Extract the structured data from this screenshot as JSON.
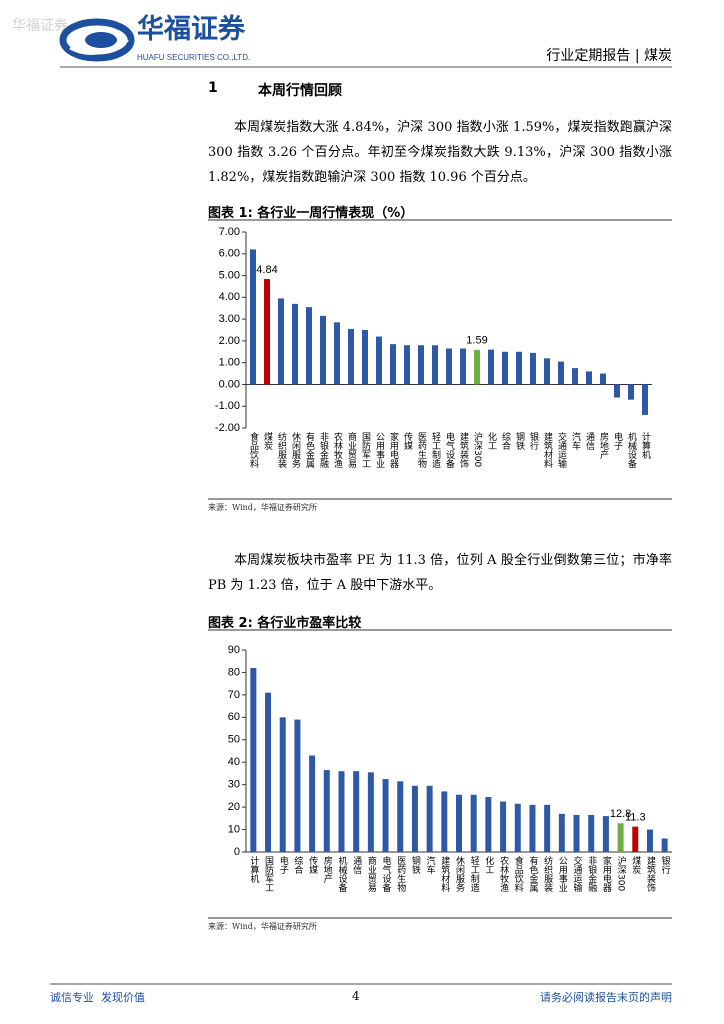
{
  "header": {
    "watermark": "华福证券",
    "logo_name": "华福证券",
    "logo_en": "HUAFU SECURITIES CO.,LTD.",
    "report_type": "行业定期报告 | 煤炭"
  },
  "section": {
    "number": "1",
    "title": "本周行情回顾"
  },
  "paragraphs": [
    "本周煤炭指数大涨 4.84%，沪深 300 指数小涨 1.59%，煤炭指数跑赢沪深 300 指数 3.26 个百分点。年初至今煤炭指数大跌 9.13%，沪深 300 指数小涨 1.82%，煤炭指数跑输沪深 300 指数 10.96 个百分点。",
    "本周煤炭板块市盈率 PE 为 11.3 倍，位列 A 股全行业倒数第三位；市净率 PB 为 1.23 倍，位于 A 股中下游水平。"
  ],
  "figures": [
    {
      "title": "图表 1: 各行业一周行情表现（%）",
      "source": "来源：Wind，华福证券研究所"
    },
    {
      "title": "图表 2: 各行业市盈率比较",
      "source": "来源：Wind，华福证券研究所"
    }
  ],
  "chart_data": [
    {
      "type": "bar",
      "categories": [
        "食品饮料",
        "煤炭",
        "纺织服装",
        "休闲服务",
        "有色金属",
        "非银金融",
        "农林牧渔",
        "商业贸易",
        "国防军工",
        "公用事业",
        "家用电器",
        "传媒",
        "医药生物",
        "轻工制造",
        "电气设备",
        "建筑装饰",
        "沪深300",
        "化工",
        "综合",
        "钢铁",
        "银行",
        "建筑材料",
        "交通运输",
        "汽车",
        "通信",
        "房地产",
        "电子",
        "机械设备",
        "计算机"
      ],
      "values": [
        6.2,
        4.84,
        3.95,
        3.7,
        3.55,
        3.15,
        2.85,
        2.55,
        2.5,
        2.2,
        1.85,
        1.8,
        1.8,
        1.8,
        1.65,
        1.65,
        1.59,
        1.6,
        1.5,
        1.5,
        1.45,
        1.2,
        1.05,
        0.75,
        0.6,
        0.5,
        -0.6,
        -0.7,
        -1.4
      ],
      "value_labels": [
        null,
        "4.84",
        null,
        null,
        null,
        null,
        null,
        null,
        null,
        null,
        null,
        null,
        null,
        null,
        null,
        null,
        "1.59",
        null,
        null,
        null,
        null,
        null,
        null,
        null,
        null,
        null,
        null,
        null,
        null
      ],
      "colors": [
        "#2e59a7",
        "#c00000",
        "#2e59a7",
        "#2e59a7",
        "#2e59a7",
        "#2e59a7",
        "#2e59a7",
        "#2e59a7",
        "#2e59a7",
        "#2e59a7",
        "#2e59a7",
        "#2e59a7",
        "#2e59a7",
        "#2e59a7",
        "#2e59a7",
        "#2e59a7",
        "#70ad47",
        "#2e59a7",
        "#2e59a7",
        "#2e59a7",
        "#2e59a7",
        "#2e59a7",
        "#2e59a7",
        "#2e59a7",
        "#2e59a7",
        "#2e59a7",
        "#2e59a7",
        "#2e59a7",
        "#2e59a7"
      ],
      "ylim": [
        -2,
        7
      ],
      "yticks": [
        {
          "value": -2,
          "label": "-2.00"
        },
        {
          "value": -1,
          "label": "-1.00"
        },
        {
          "value": 0,
          "label": "0.00"
        },
        {
          "value": 1,
          "label": "1.00"
        },
        {
          "value": 2,
          "label": "2.00"
        },
        {
          "value": 3,
          "label": "3.00"
        },
        {
          "value": 4,
          "label": "4.00"
        },
        {
          "value": 5,
          "label": "5.00"
        },
        {
          "value": 6,
          "label": "6.00"
        },
        {
          "value": 7,
          "label": "7.00"
        }
      ],
      "grid": false
    },
    {
      "type": "bar",
      "categories": [
        "计算机",
        "国防军工",
        "电子",
        "综合",
        "传媒",
        "房地产",
        "机械设备",
        "通信",
        "商业贸易",
        "电气设备",
        "医药生物",
        "钢铁",
        "汽车",
        "建筑材料",
        "休闲服务",
        "轻工制造",
        "化工",
        "农林牧渔",
        "食品饮料",
        "有色金属",
        "纺织服装",
        "公用事业",
        "交通运输",
        "非银金融",
        "家用电器",
        "沪深300",
        "煤炭",
        "建筑装饰",
        "银行"
      ],
      "values": [
        82,
        71,
        60,
        59,
        43,
        36.5,
        36,
        36,
        35.5,
        32.5,
        31.5,
        29.5,
        29.5,
        27,
        25.5,
        25.5,
        24.5,
        22.5,
        21.5,
        21,
        21,
        17,
        16.5,
        16.5,
        16,
        12.8,
        11.3,
        10,
        6
      ],
      "value_labels": [
        null,
        null,
        null,
        null,
        null,
        null,
        null,
        null,
        null,
        null,
        null,
        null,
        null,
        null,
        null,
        null,
        null,
        null,
        null,
        null,
        null,
        null,
        null,
        null,
        null,
        "12.8",
        "11.3",
        null,
        null
      ],
      "colors": [
        "#2e59a7",
        "#2e59a7",
        "#2e59a7",
        "#2e59a7",
        "#2e59a7",
        "#2e59a7",
        "#2e59a7",
        "#2e59a7",
        "#2e59a7",
        "#2e59a7",
        "#2e59a7",
        "#2e59a7",
        "#2e59a7",
        "#2e59a7",
        "#2e59a7",
        "#2e59a7",
        "#2e59a7",
        "#2e59a7",
        "#2e59a7",
        "#2e59a7",
        "#2e59a7",
        "#2e59a7",
        "#2e59a7",
        "#2e59a7",
        "#2e59a7",
        "#70ad47",
        "#c00000",
        "#2e59a7",
        "#2e59a7"
      ],
      "ylim": [
        0,
        90
      ],
      "yticks": [
        0,
        10,
        20,
        30,
        40,
        50,
        60,
        70,
        80,
        90
      ],
      "grid": false
    }
  ],
  "footer": {
    "left": "诚信专业  发现价值",
    "page": "4",
    "right": "请务必阅读报告末页的声明"
  }
}
